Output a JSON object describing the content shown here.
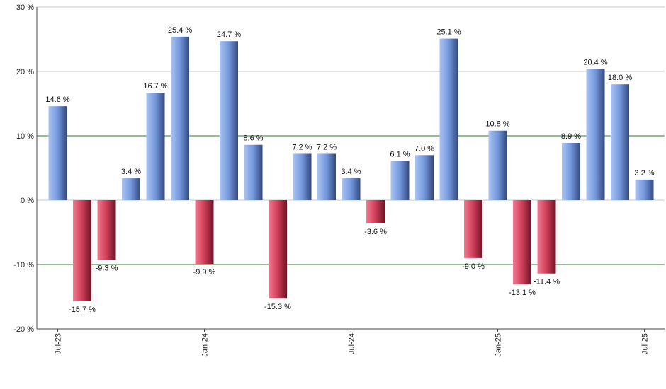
{
  "chart_data": {
    "type": "bar",
    "title": "",
    "xlabel": "",
    "ylabel": "",
    "ylim": [
      -20,
      30
    ],
    "y_ticks": [
      30,
      20,
      10,
      0,
      -10,
      -20
    ],
    "y_tick_labels": [
      "30 %",
      "20 %",
      "10 %",
      "0 %",
      "-10 %",
      "-20 %"
    ],
    "x_tick_labels": [
      {
        "label": "Jul-23",
        "index": 0
      },
      {
        "label": "Jan-24",
        "index": 6
      },
      {
        "label": "Jul-24",
        "index": 12
      },
      {
        "label": "Jan-25",
        "index": 18
      },
      {
        "label": "Jul-25",
        "index": 24
      }
    ],
    "categories": [
      "Jul-23",
      "Aug-23",
      "Sep-23",
      "Oct-23",
      "Nov-23",
      "Dec-23",
      "Jan-24",
      "Feb-24",
      "Mar-24",
      "Apr-24",
      "May-24",
      "Jun-24",
      "Jul-24",
      "Aug-24",
      "Sep-24",
      "Oct-24",
      "Nov-24",
      "Dec-24",
      "Jan-25",
      "Feb-25",
      "Mar-25",
      "Apr-25",
      "May-25",
      "Jun-25",
      "Jul-25"
    ],
    "values": [
      14.6,
      -15.7,
      -9.3,
      3.4,
      16.7,
      25.4,
      -9.9,
      24.7,
      8.6,
      -15.3,
      7.2,
      7.2,
      3.4,
      -3.6,
      6.1,
      7.0,
      25.1,
      -9.0,
      10.8,
      -13.1,
      -11.4,
      8.9,
      20.4,
      18.0,
      3.2
    ],
    "data_labels": [
      "14.6 %",
      "-15.7 %",
      "-9.3 %",
      "3.4 %",
      "16.7 %",
      "25.4 %",
      "-9.9 %",
      "24.7 %",
      "8.6 %",
      "-15.3 %",
      "7.2 %",
      "7.2 %",
      "3.4 %",
      "-3.6 %",
      "6.1 %",
      "7.0 %",
      "25.1 %",
      "-9.0 %",
      "10.8 %",
      "-13.1 %",
      "-11.4 %",
      "8.9 %",
      "20.4 %",
      "18.0 %",
      "3.2 %"
    ],
    "reference_lines": [
      10,
      -10
    ],
    "grid": true,
    "legend": "none",
    "colors": {
      "positive": "#6f94d8",
      "negative": "#c83a55",
      "reference_line": "#2e7d2e",
      "grid": "#c8c8c8"
    }
  }
}
